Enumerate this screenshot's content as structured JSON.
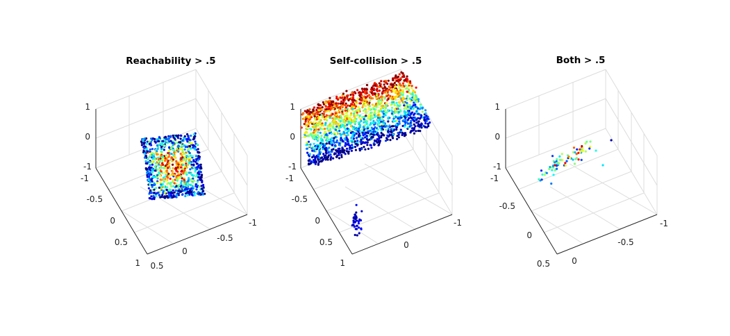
{
  "chart_data": [
    {
      "type": "scatter3d",
      "title": "Reachability > .5",
      "xlabel": "",
      "ylabel": "",
      "zlabel": "",
      "xlim": [
        -1,
        1
      ],
      "ylim": [
        -1,
        1
      ],
      "zlim": [
        -1,
        1
      ],
      "x_ticks": [
        "-1",
        "-0.5",
        "0",
        "0.5",
        "1"
      ],
      "y_ticks": [
        "0.5",
        "0",
        "-0.5",
        "-1"
      ],
      "z_ticks": [
        "-1",
        "0",
        "1"
      ],
      "grid": true,
      "colormap": "jet",
      "cluster": {
        "center": [
          0.05,
          0.05,
          -0.6
        ],
        "spread": [
          0.5,
          0.55,
          0.35
        ],
        "count": 900,
        "shape": "square-block",
        "color_values": "high in center, low at edges"
      }
    },
    {
      "type": "scatter3d",
      "title": "Self-collision > .5",
      "xlabel": "",
      "ylabel": "",
      "zlabel": "",
      "xlim": [
        -1,
        1
      ],
      "ylim": [
        -1,
        1
      ],
      "zlim": [
        -1,
        1
      ],
      "x_ticks": [
        "-1",
        "-0.5",
        "0",
        "0.5",
        "1"
      ],
      "y_ticks": [
        "0",
        "-1"
      ],
      "z_ticks": [
        "-1",
        "0",
        "1"
      ],
      "grid": true,
      "colormap": "jet",
      "cluster": {
        "center": [
          -0.9,
          -0.2,
          -0.1
        ],
        "spread": [
          0.35,
          1.0,
          0.85
        ],
        "count": 1800,
        "shape": "slab",
        "color_values": "high at top, low at bottom"
      },
      "secondary_cluster": {
        "center": [
          0.6,
          0.15,
          -1.0
        ],
        "spread": [
          0.12,
          0.1,
          0.05
        ],
        "count": 40,
        "color_values": "low"
      }
    },
    {
      "type": "scatter3d",
      "title": "Both > .5",
      "xlabel": "",
      "ylabel": "",
      "zlabel": "",
      "xlim": [
        -1,
        1
      ],
      "ylim": [
        -1,
        1
      ],
      "zlim": [
        -1,
        1
      ],
      "x_ticks": [
        "-1",
        "-0.5",
        "0",
        "0.5"
      ],
      "y_ticks": [
        "0",
        "-0.5",
        "-1"
      ],
      "z_ticks": [
        "-1",
        "0",
        "1"
      ],
      "grid": true,
      "colormap": "jet",
      "cluster": {
        "center": [
          -0.6,
          0.1,
          -0.55
        ],
        "spread": [
          0.3,
          0.35,
          0.15
        ],
        "count": 75,
        "shape": "sparse-diagonal",
        "color_values": "mixed"
      }
    }
  ]
}
